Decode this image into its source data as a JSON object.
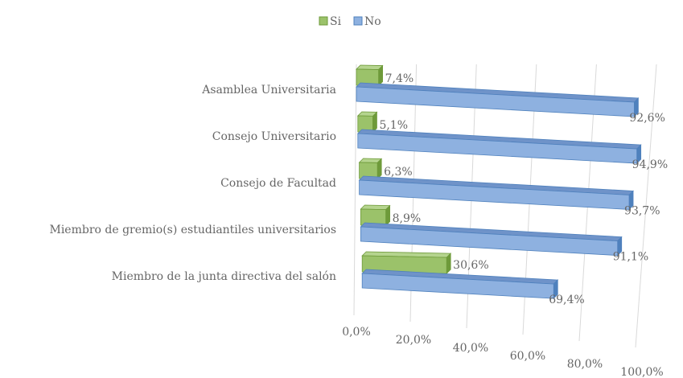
{
  "chart_data": {
    "type": "bar3d",
    "categories": [
      "Asamblea Universitaria",
      "Consejo Universitario",
      "Consejo de Facultad",
      "Miembro de gremio(s) estudiantiles universitarios",
      "Miembro de la junta directiva del salón"
    ],
    "series": [
      {
        "name": "Si",
        "color": "#9bc26a",
        "values": [
          7.4,
          5.1,
          6.3,
          8.9,
          30.6
        ],
        "value_labels": [
          "7,4%",
          "5,1%",
          "6,3%",
          "8,9%",
          "30,6%"
        ]
      },
      {
        "name": "No",
        "color": "#8eb1e0",
        "values": [
          92.6,
          94.9,
          93.7,
          91.1,
          69.4
        ],
        "value_labels": [
          "92,6%",
          "94,9%",
          "93,7%",
          "91,1%",
          "69,4%"
        ]
      }
    ],
    "xlim": [
      0,
      100
    ],
    "xticks": [
      {
        "value": 0,
        "label": "0,0%"
      },
      {
        "value": 20,
        "label": "20,0%"
      },
      {
        "value": 40,
        "label": "40,0%"
      },
      {
        "value": 60,
        "label": "60,0%"
      },
      {
        "value": 80,
        "label": "80,0%"
      },
      {
        "value": 100,
        "label": "100,0%"
      }
    ],
    "grid": true,
    "legend": "top"
  }
}
